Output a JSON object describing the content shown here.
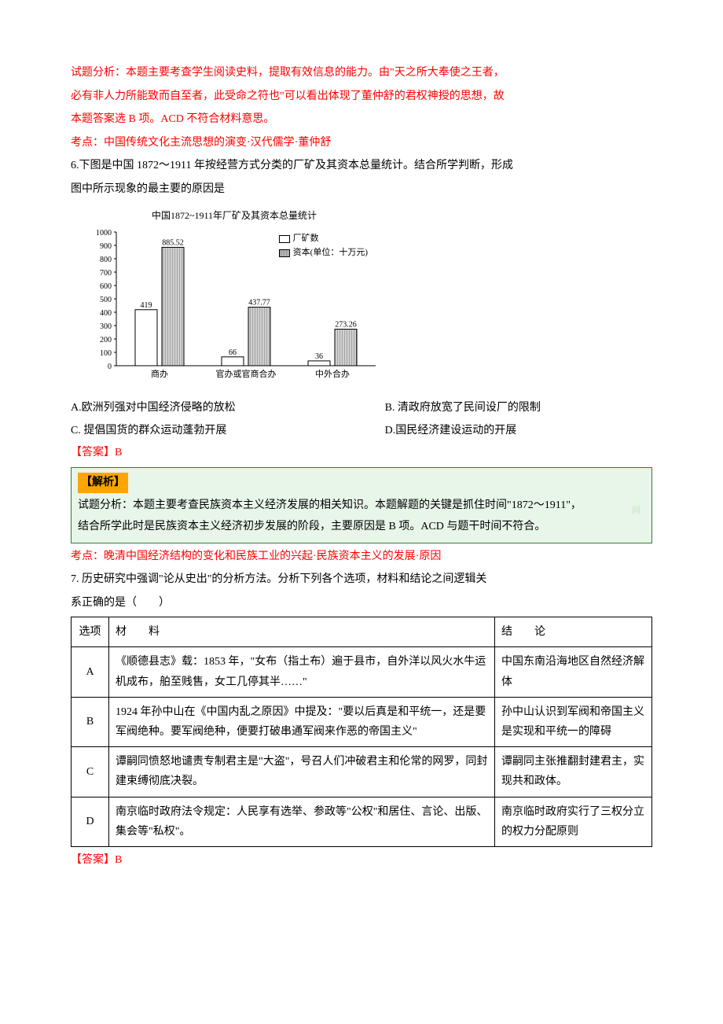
{
  "q5": {
    "analysis_p1": "试题分析：本题主要考查学生阅读史料，提取有效信息的能力。由\"天之所大奉使之王者，",
    "analysis_p2": "必有非人力所能致而自至者，此受命之符也\"可以看出体现了董仲舒的君权神授的思想，故",
    "analysis_p3": "本题答案选 B 项。ACD 不符合材料意思。",
    "kaodian": "考点：中国传统文化主流思想的演变·汉代儒学·董仲舒"
  },
  "q6": {
    "stem1": "6.下图是中国 1872～1911 年按经营方式分类的厂矿及其资本总量统计。结合所学判断，形成",
    "stem2": "图中所示现象的最主要的原因是",
    "chart": {
      "type": "bar",
      "title": "中国1872~1911年厂矿及其资本总量统计",
      "legend_count": "厂矿数",
      "legend_capital": "资本(单位：十万元)",
      "categories": [
        "商办",
        "官办或官商合办",
        "中外合办"
      ],
      "counts": [
        419,
        66,
        36
      ],
      "capitals": [
        885.52,
        437.77,
        273.26
      ],
      "count_labels": [
        "419",
        "66",
        "36"
      ],
      "capital_labels": [
        "885.52",
        "437.77",
        "273.26"
      ],
      "ylim": [
        0,
        1000
      ],
      "ytick_step": 100,
      "count_color": "#ffffff",
      "capital_fill": "hatched",
      "border_color": "#000000",
      "axis_color": "#000000",
      "title_fontsize": 12,
      "label_fontsize": 11
    },
    "opt_a": "A.欧洲列强对中国经济侵略的放松",
    "opt_b": "B. 清政府放宽了民间设厂的限制",
    "opt_c": "C. 提倡国货的群众运动蓬勃开展",
    "opt_d": "D.国民经济建设运动的开展",
    "answer": "【答案】B",
    "analysis_label": "【解析】",
    "analysis_p1": "试题分析：本题主要考查民族资本主义经济发展的相关知识。本题解题的关键是抓住时间\"1872～1911\"，",
    "analysis_p2": "结合所学此时是民族资本主义经济初步发展的阶段，主要原因是 B 项。ACD 与题干时间不符合。",
    "watermark": "网",
    "kaodian": "考点：晚清中国经济结构的变化和民族工业的兴起·民族资本主义的发展·原因"
  },
  "q7": {
    "stem1": "7. 历史研究中强调\"论从史出\"的分析方法。分析下列各个选项，材料和结论之间逻辑关",
    "stem2": "系正确的是（　　）",
    "table": {
      "header_opt": "选项",
      "header_mat": "材　　料",
      "header_con": "结　　论",
      "rows": [
        {
          "opt": "A",
          "mat": "《顺德县志》载：1853 年，\"女布（指土布）遍于县市，自外洋以风火水牛运机成布，舶至贱售，女工几停其半……\"",
          "con": "中国东南沿海地区自然经济解体"
        },
        {
          "opt": "B",
          "mat": "1924 年孙中山在《中国内乱之原因》中提及：\"要以后真是和平统一，还是要军阀绝种。要军阀绝种，便要打破串通军阀来作恶的帝国主义\"",
          "con": "孙中山认识到军阀和帝国主义是实现和平统一的障碍"
        },
        {
          "opt": "C",
          "mat": "谭嗣同愤怒地谴责专制君主是\"大盗\"，号召人们冲破君主和伦常的网罗，同封建束缚彻底决裂。",
          "con": "谭嗣同主张推翻封建君主，实现共和政体。"
        },
        {
          "opt": "D",
          "mat": "南京临时政府法令规定：人民享有选举、参政等\"公权\"和居住、言论、出版、集会等\"私权\"。",
          "con": "南京临时政府实行了三权分立的权力分配原则"
        }
      ]
    },
    "answer": "【答案】B"
  }
}
